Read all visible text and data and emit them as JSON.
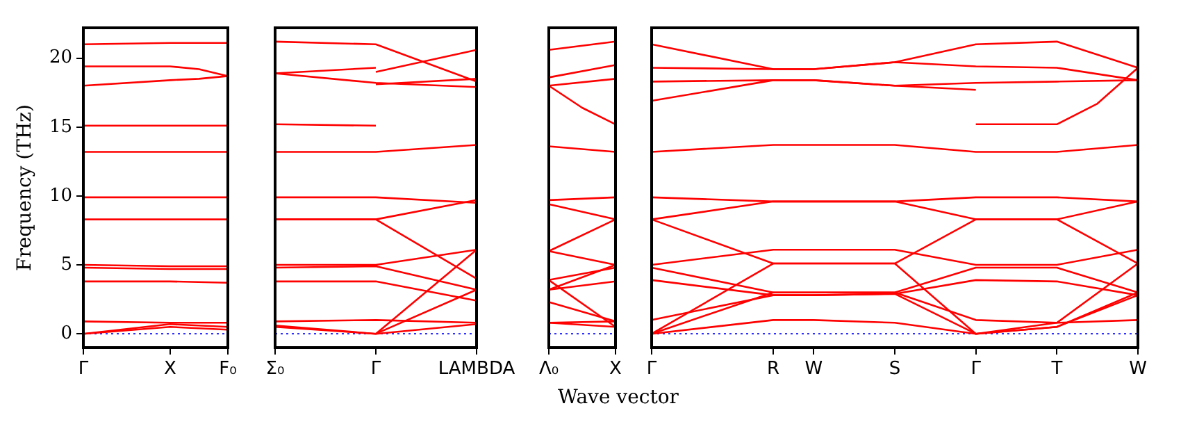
{
  "chart_data": [
    {
      "type": "line",
      "ylabel": "Frequency (THz)",
      "categories": [
        "Γ",
        null,
        null,
        "X",
        null,
        "F₀"
      ],
      "ylim": [
        -1,
        22.2
      ],
      "yticks": [
        0,
        5,
        10,
        15,
        20
      ],
      "grid": false,
      "legend": false,
      "marker": "none",
      "line_style": "solid",
      "ref_lines": [
        {
          "axis": "y",
          "value": 0,
          "color": "#0000ff",
          "line_style": "dotted"
        }
      ],
      "series": [
        {
          "color": "#ff0000",
          "values": [
            21.0,
            null,
            null,
            21.1,
            null,
            21.1
          ]
        },
        {
          "color": "#ff0000",
          "values": [
            19.4,
            null,
            null,
            19.4,
            19.2,
            18.7
          ]
        },
        {
          "color": "#ff0000",
          "values": [
            18.0,
            null,
            null,
            18.4,
            18.5,
            18.7
          ]
        },
        {
          "color": "#ff0000",
          "values": [
            15.1,
            null,
            null,
            15.1,
            null,
            15.1
          ]
        },
        {
          "color": "#ff0000",
          "values": [
            13.2,
            null,
            null,
            13.2,
            null,
            13.2
          ]
        },
        {
          "color": "#ff0000",
          "values": [
            9.9,
            null,
            null,
            9.9,
            null,
            9.9
          ]
        },
        {
          "color": "#ff0000",
          "values": [
            8.3,
            null,
            null,
            8.3,
            null,
            8.3
          ]
        },
        {
          "color": "#ff0000",
          "values": [
            5.0,
            null,
            null,
            4.9,
            null,
            4.9
          ]
        },
        {
          "color": "#ff0000",
          "values": [
            4.8,
            null,
            null,
            4.7,
            null,
            4.7
          ]
        },
        {
          "color": "#ff0000",
          "values": [
            3.8,
            null,
            null,
            3.8,
            null,
            3.7
          ]
        },
        {
          "color": "#ff0000",
          "values": [
            0.9,
            null,
            null,
            0.8,
            null,
            0.8
          ]
        },
        {
          "color": "#ff0000",
          "values": [
            0,
            null,
            null,
            0.7,
            null,
            0.5
          ]
        },
        {
          "color": "#ff0000",
          "values": [
            0,
            null,
            null,
            0.5,
            null,
            0.3
          ]
        }
      ]
    },
    {
      "type": "line",
      "categories": [
        "Σ₀",
        "Γ",
        "LAMBDA"
      ],
      "ylim": [
        -1,
        22.2
      ],
      "yticks": [
        0,
        5,
        10,
        15,
        20
      ],
      "tick_labels": "x",
      "grid": false,
      "legend": false,
      "marker": "none",
      "line_style": "solid",
      "ref_lines": [
        {
          "axis": "y",
          "value": 0,
          "color": "#0000ff",
          "line_style": "dotted"
        }
      ],
      "series": [
        {
          "color": "#ff0000",
          "values": [
            21.2,
            21.0,
            18.3
          ]
        },
        {
          "color": "#ff0000",
          "values": [
            18.9,
            19.3,
            null
          ]
        },
        {
          "color": "#ff0000",
          "values": [
            null,
            19.0,
            20.6
          ]
        },
        {
          "color": "#ff0000",
          "values": [
            18.9,
            18.2,
            17.9
          ]
        },
        {
          "color": "#ff0000",
          "values": [
            null,
            18.1,
            18.5
          ]
        },
        {
          "color": "#ff0000",
          "values": [
            15.2,
            15.1,
            null
          ]
        },
        {
          "color": "#ff0000",
          "values": [
            13.2,
            13.2,
            13.7
          ]
        },
        {
          "color": "#ff0000",
          "values": [
            9.9,
            9.9,
            9.5
          ]
        },
        {
          "color": "#ff0000",
          "values": [
            8.3,
            8.3,
            9.7
          ]
        },
        {
          "color": "#ff0000",
          "values": [
            8.3,
            8.3,
            4.0
          ]
        },
        {
          "color": "#ff0000",
          "values": [
            5.0,
            5.0,
            6.1
          ]
        },
        {
          "color": "#ff0000",
          "values": [
            4.8,
            4.9,
            3.2
          ]
        },
        {
          "color": "#ff0000",
          "values": [
            3.8,
            3.8,
            2.4
          ]
        },
        {
          "color": "#ff0000",
          "values": [
            0.9,
            1.0,
            0.8
          ]
        },
        {
          "color": "#ff0000",
          "values": [
            0.6,
            0,
            6.1
          ]
        },
        {
          "color": "#ff0000",
          "values": [
            0.5,
            0,
            3.2
          ]
        },
        {
          "color": "#ff0000",
          "values": [
            null,
            0,
            0.7
          ]
        }
      ]
    },
    {
      "type": "line",
      "categories": [
        "Λ₀",
        null,
        "X"
      ],
      "ylim": [
        -1,
        22.2
      ],
      "yticks": [
        0,
        5,
        10,
        15,
        20
      ],
      "tick_labels": "x",
      "grid": false,
      "legend": false,
      "marker": "none",
      "line_style": "solid",
      "ref_lines": [
        {
          "axis": "y",
          "value": 0,
          "color": "#0000ff",
          "line_style": "dotted"
        }
      ],
      "series": [
        {
          "color": "#ff0000",
          "values": [
            20.6,
            null,
            21.2
          ]
        },
        {
          "color": "#ff0000",
          "values": [
            18.6,
            null,
            19.5
          ]
        },
        {
          "color": "#ff0000",
          "values": [
            18.0,
            null,
            18.5
          ]
        },
        {
          "color": "#ff0000",
          "values": [
            18.0,
            16.4,
            15.2
          ]
        },
        {
          "color": "#ff0000",
          "values": [
            13.6,
            null,
            13.2
          ]
        },
        {
          "color": "#ff0000",
          "values": [
            9.7,
            null,
            9.9
          ]
        },
        {
          "color": "#ff0000",
          "values": [
            9.4,
            null,
            8.3
          ]
        },
        {
          "color": "#ff0000",
          "values": [
            6.0,
            null,
            8.3
          ]
        },
        {
          "color": "#ff0000",
          "values": [
            6.0,
            null,
            5.0
          ]
        },
        {
          "color": "#ff0000",
          "values": [
            3.9,
            null,
            4.8
          ]
        },
        {
          "color": "#ff0000",
          "values": [
            3.2,
            null,
            5.0
          ]
        },
        {
          "color": "#ff0000",
          "values": [
            3.2,
            null,
            3.8
          ]
        },
        {
          "color": "#ff0000",
          "values": [
            2.3,
            null,
            0.9
          ]
        },
        {
          "color": "#ff0000",
          "values": [
            3.9,
            null,
            0.5
          ]
        },
        {
          "color": "#ff0000",
          "values": [
            0.8,
            null,
            0.9
          ]
        },
        {
          "color": "#ff0000",
          "values": [
            0.8,
            null,
            0.5
          ]
        }
      ]
    },
    {
      "type": "line",
      "xlabel": "Wave vector",
      "categories": [
        "Γ",
        null,
        null,
        "R",
        "W",
        null,
        "S",
        null,
        "Γ",
        null,
        "T",
        null,
        "W"
      ],
      "ylim": [
        -1,
        22.2
      ],
      "yticks": [
        0,
        5,
        10,
        15,
        20
      ],
      "tick_labels": "x",
      "grid": false,
      "legend": false,
      "marker": "none",
      "line_style": "solid",
      "ref_lines": [
        {
          "axis": "y",
          "value": 0,
          "color": "#0000ff",
          "line_style": "dotted"
        }
      ],
      "series": [
        {
          "color": "#ff0000",
          "values": [
            21.0,
            null,
            null,
            19.2,
            19.2,
            null,
            19.7,
            null,
            21.0,
            null,
            21.2,
            null,
            19.3
          ]
        },
        {
          "color": "#ff0000",
          "values": [
            19.3,
            null,
            null,
            19.2,
            19.2,
            null,
            19.7,
            null,
            19.4,
            null,
            19.3,
            null,
            18.4
          ]
        },
        {
          "color": "#ff0000",
          "values": [
            18.3,
            null,
            null,
            18.4,
            18.4,
            null,
            18.0,
            null,
            18.2,
            null,
            18.3,
            null,
            18.4
          ]
        },
        {
          "color": "#ff0000",
          "values": [
            16.9,
            null,
            null,
            18.4,
            18.4,
            null,
            18.0,
            null,
            17.7,
            null,
            null,
            null,
            null
          ]
        },
        {
          "color": "#ff0000",
          "values": [
            null,
            null,
            null,
            null,
            null,
            null,
            null,
            null,
            15.2,
            null,
            15.2,
            16.7,
            19.3
          ]
        },
        {
          "color": "#ff0000",
          "values": [
            13.2,
            null,
            null,
            13.7,
            13.7,
            null,
            13.7,
            null,
            13.2,
            null,
            13.2,
            null,
            13.7
          ]
        },
        {
          "color": "#ff0000",
          "values": [
            9.9,
            null,
            null,
            9.6,
            9.6,
            null,
            9.6,
            null,
            9.9,
            null,
            9.9,
            null,
            9.6
          ]
        },
        {
          "color": "#ff0000",
          "values": [
            8.3,
            null,
            null,
            9.6,
            9.6,
            null,
            9.6,
            null,
            8.3,
            null,
            8.3,
            null,
            9.6
          ]
        },
        {
          "color": "#ff0000",
          "values": [
            8.3,
            null,
            null,
            5.1,
            5.1,
            null,
            5.1,
            null,
            8.3,
            null,
            8.3,
            null,
            5.1
          ]
        },
        {
          "color": "#ff0000",
          "values": [
            5.0,
            null,
            null,
            6.1,
            6.1,
            null,
            6.1,
            null,
            5.0,
            null,
            5.0,
            null,
            6.1
          ]
        },
        {
          "color": "#ff0000",
          "values": [
            4.8,
            null,
            null,
            3.0,
            3.0,
            null,
            3.0,
            null,
            4.8,
            null,
            4.8,
            null,
            3.0
          ]
        },
        {
          "color": "#ff0000",
          "values": [
            3.9,
            null,
            null,
            2.8,
            2.8,
            null,
            2.9,
            null,
            3.9,
            null,
            3.8,
            null,
            2.8
          ]
        },
        {
          "color": "#ff0000",
          "values": [
            1.0,
            null,
            null,
            2.8,
            2.8,
            null,
            2.9,
            null,
            0,
            null,
            0.5,
            null,
            2.8
          ]
        },
        {
          "color": "#ff0000",
          "values": [
            0,
            null,
            null,
            5.1,
            5.1,
            null,
            5.1,
            null,
            0,
            null,
            0.5,
            null,
            3.0
          ]
        },
        {
          "color": "#ff0000",
          "values": [
            0,
            null,
            null,
            1.0,
            1.0,
            null,
            0.8,
            null,
            0,
            null,
            0.8,
            null,
            1.0
          ]
        },
        {
          "color": "#ff0000",
          "values": [
            0,
            null,
            null,
            3.0,
            3.0,
            null,
            3.0,
            null,
            1.0,
            null,
            0.8,
            null,
            5.1
          ]
        }
      ]
    }
  ]
}
